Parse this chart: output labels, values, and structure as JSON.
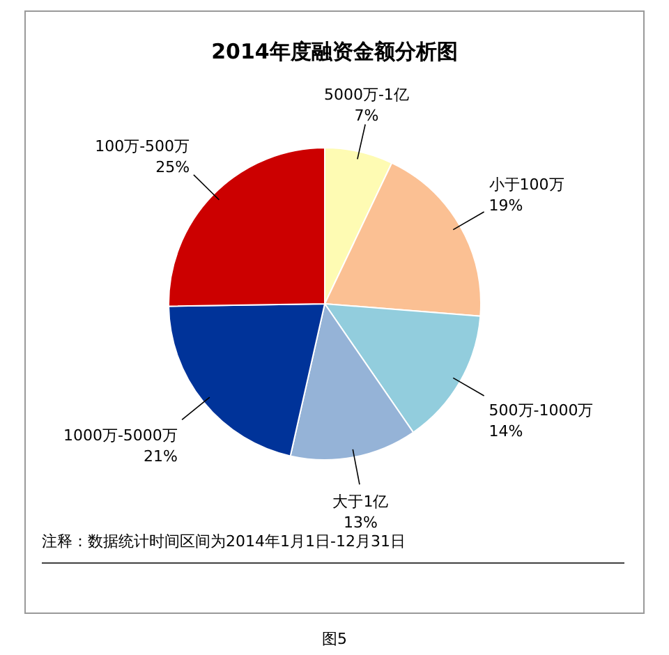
{
  "chart_data": {
    "type": "pie",
    "title": "2014年度融资金额分析图",
    "categories": [
      "5000万-1亿",
      "小于100万",
      "500万-1000万",
      "大于1亿",
      "1000万-5000万",
      "100万-500万"
    ],
    "values": [
      7,
      19,
      14,
      13,
      21,
      25
    ],
    "value_labels": [
      "7%",
      "19%",
      "14%",
      "13%",
      "21%",
      "25%"
    ],
    "colors": [
      "#fefbb3",
      "#fbc093",
      "#92cddd",
      "#95b3d7",
      "#003399",
      "#cc0000"
    ],
    "annotations": [
      "注释：数据统计时间区间为2014年1月1日-12月31日",
      "图5"
    ]
  }
}
